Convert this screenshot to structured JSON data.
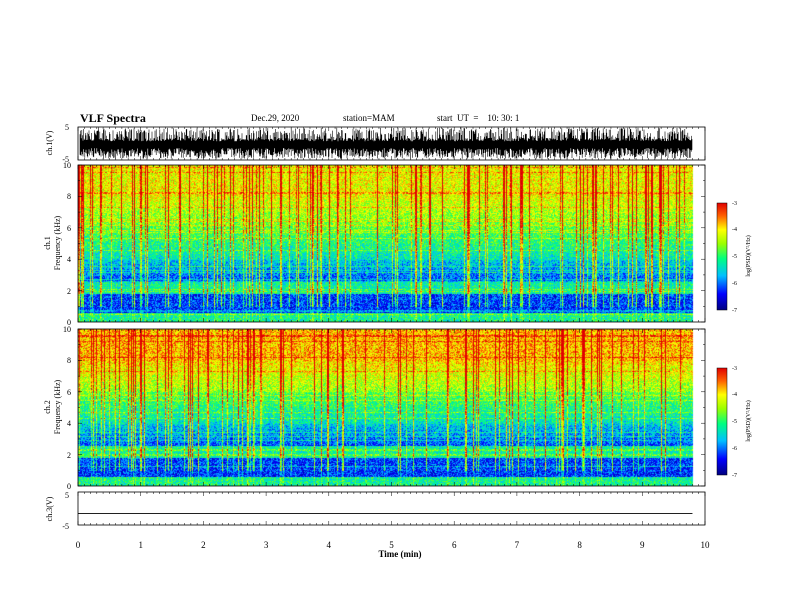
{
  "header": {
    "title": "VLF Spectra",
    "date": "Dec.29, 2020",
    "station": "station=MAM",
    "start": "start  UT  =    10: 30: 1"
  },
  "chart_data": [
    {
      "type": "line",
      "panel": "ch1-waveform",
      "ylabel": "ch.1(V)",
      "ylim": [
        -5,
        5
      ],
      "yticks": [
        "5",
        "-5"
      ],
      "description_values": "dense impulsive waveform, amplitude about -5 to 5 V",
      "xlim": [
        0,
        10
      ]
    },
    {
      "type": "heatmap",
      "panel": "ch1-spectrogram",
      "ylabel_line1": "ch.1",
      "ylabel_line2": "Frequency  (kHz)",
      "ylim": [
        0,
        10
      ],
      "yticks": [
        "0",
        "2",
        "4",
        "6",
        "8",
        "10"
      ],
      "xlim": [
        0,
        10
      ],
      "colorbar": {
        "label": "log(PSD)(V²/Hz)",
        "range": [
          -7,
          -3
        ],
        "ticks": [
          "-3",
          "-4",
          "-5",
          "-6",
          "-7"
        ]
      }
    },
    {
      "type": "heatmap",
      "panel": "ch2-spectrogram",
      "ylabel_line1": "ch.2",
      "ylabel_line2": "Frequency  (kHz)",
      "ylim": [
        0,
        10
      ],
      "yticks": [
        "0",
        "2",
        "4",
        "6",
        "8",
        "10"
      ],
      "xlim": [
        0,
        10
      ],
      "colorbar": {
        "label": "log(PSD)(V²/Hz)",
        "range": [
          -7,
          -3
        ],
        "ticks": [
          "-3",
          "-4",
          "-5",
          "-6",
          "-7"
        ]
      }
    },
    {
      "type": "line",
      "panel": "ch3-waveform",
      "ylabel": "ch.3(V)",
      "ylim": [
        -5,
        5
      ],
      "yticks": [
        "5",
        "-5"
      ],
      "x": [
        0,
        9.8
      ],
      "y": [
        -1.5,
        -1.5
      ],
      "xlim": [
        0,
        10
      ]
    }
  ],
  "xaxis": {
    "label": "Time  (min)",
    "ticks": [
      "0",
      "1",
      "2",
      "3",
      "4",
      "5",
      "6",
      "7",
      "8",
      "9",
      "10"
    ],
    "range": [
      0,
      10
    ]
  }
}
